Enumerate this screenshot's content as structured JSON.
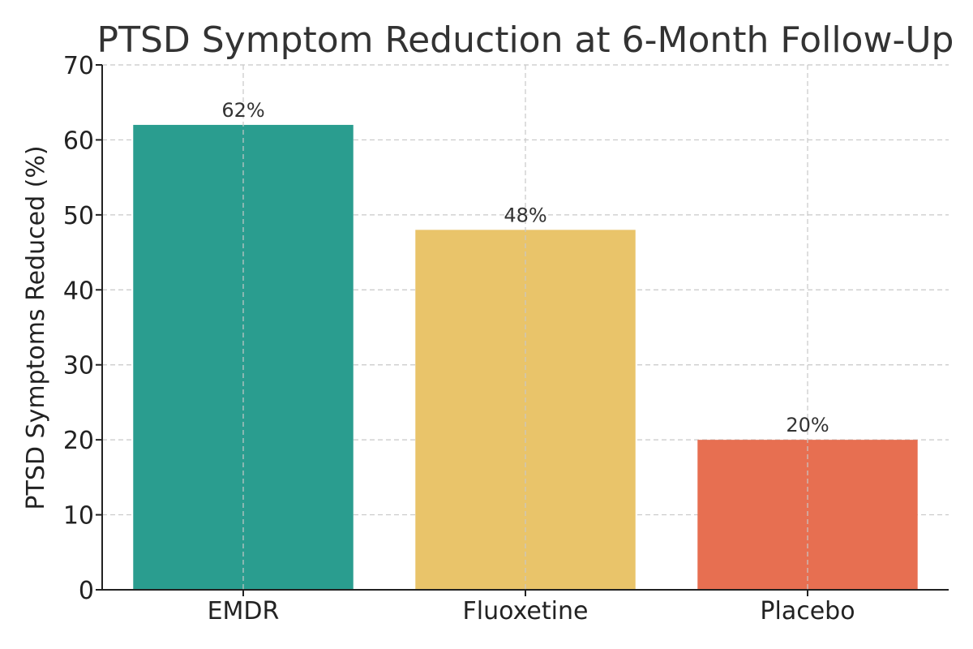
{
  "chart_data": {
    "type": "bar",
    "title": "PTSD Symptom Reduction at 6-Month Follow-Up",
    "xlabel": "",
    "ylabel": "PTSD Symptoms Reduced (%)",
    "categories": [
      "EMDR",
      "Fluoxetine",
      "Placebo"
    ],
    "values": [
      62,
      48,
      20
    ],
    "data_labels": [
      "62%",
      "48%",
      "20%"
    ],
    "colors": [
      "#2a9d8f",
      "#e9c46a",
      "#e76f51"
    ],
    "ylim": [
      0,
      70
    ],
    "yticks": [
      0,
      10,
      20,
      30,
      40,
      50,
      60,
      70
    ],
    "grid": true
  }
}
